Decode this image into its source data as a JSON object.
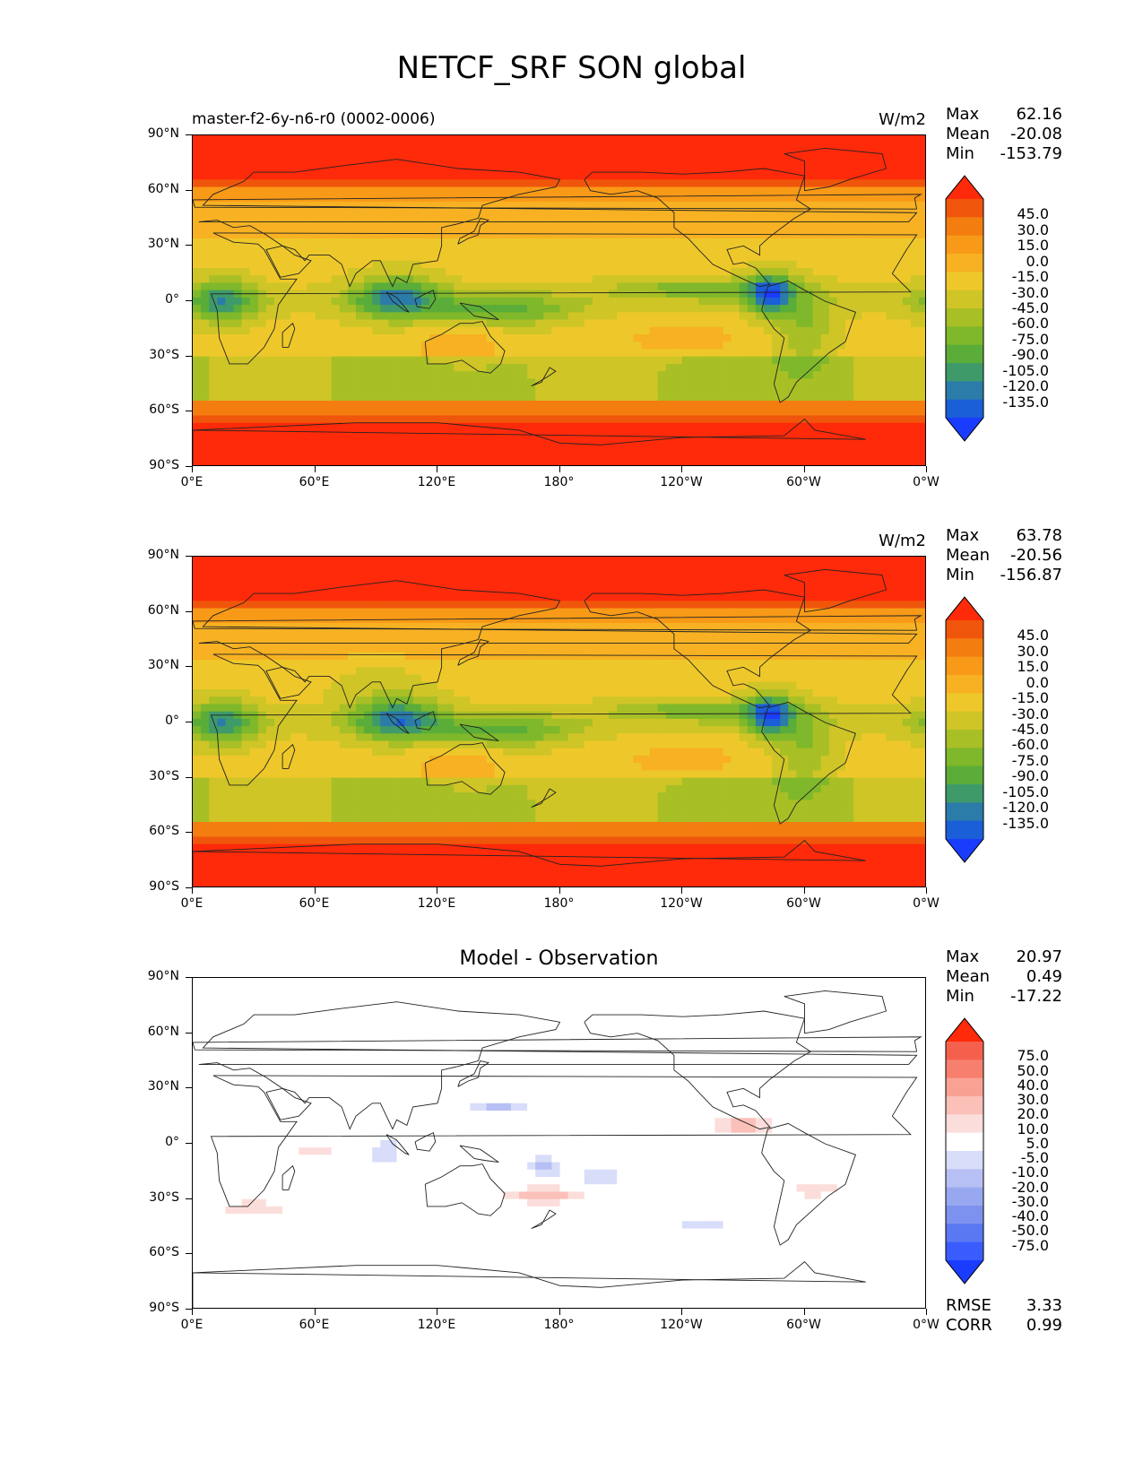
{
  "figure_title": "NETCF_SRF SON global",
  "colors": {
    "mean_scale": [
      "#1a3cff",
      "#1a5ed8",
      "#2b7ca8",
      "#3f9a6a",
      "#5aad38",
      "#7fb82a",
      "#a8bf25",
      "#cfc527",
      "#eec82a",
      "#f7b122",
      "#f89a17",
      "#f47d10",
      "#f0560b",
      "#ff2a0a"
    ],
    "diff_scale": [
      "#1a3cff",
      "#3a5cff",
      "#5a78f2",
      "#7d91ee",
      "#98a8f0",
      "#b7c0f4",
      "#d8ddf9",
      "#ffffff",
      "#fbdedb",
      "#fbc0b8",
      "#f9a294",
      "#f77f6e",
      "#f5604d",
      "#ff2a0a"
    ],
    "land_outline": "#222222"
  },
  "axes": {
    "y_ticks": [
      "90°N",
      "60°N",
      "30°N",
      "0°",
      "30°S",
      "60°S",
      "90°S"
    ],
    "x_ticks": [
      "0°E",
      "60°E",
      "120°E",
      "180°",
      "120°W",
      "60°W",
      "0°W"
    ]
  },
  "panels": [
    {
      "id": "model",
      "left_title": "master-f2-6y-n6-r0 (0002-0006)",
      "units": "W/m2",
      "center_title": "",
      "stats": [
        {
          "label": "Max",
          "value": "62.16"
        },
        {
          "label": "Mean",
          "value": "-20.08"
        },
        {
          "label": "Min",
          "value": "-153.79"
        }
      ],
      "cbar_labels": [
        "45.0",
        "30.0",
        "15.0",
        "0.0",
        "-15.0",
        "-30.0",
        "-45.0",
        "-60.0",
        "-75.0",
        "-90.0",
        "-105.0",
        "-120.0",
        "-135.0"
      ],
      "type": "mean"
    },
    {
      "id": "observation",
      "left_title": "",
      "units": "W/m2",
      "center_title": "",
      "stats": [
        {
          "label": "Max",
          "value": "63.78"
        },
        {
          "label": "Mean",
          "value": "-20.56"
        },
        {
          "label": "Min",
          "value": "-156.87"
        }
      ],
      "cbar_labels": [
        "45.0",
        "30.0",
        "15.0",
        "0.0",
        "-15.0",
        "-30.0",
        "-45.0",
        "-60.0",
        "-75.0",
        "-90.0",
        "-105.0",
        "-120.0",
        "-135.0"
      ],
      "type": "mean"
    },
    {
      "id": "difference",
      "left_title": "",
      "units": "",
      "center_title": "Model - Observation",
      "stats": [
        {
          "label": "Max",
          "value": "20.97"
        },
        {
          "label": "Mean",
          "value": "0.49"
        },
        {
          "label": "Min",
          "value": "-17.22"
        }
      ],
      "cbar_labels": [
        "75.0",
        "50.0",
        "40.0",
        "30.0",
        "20.0",
        "10.0",
        "5.0",
        "-5.0",
        "-10.0",
        "-20.0",
        "-30.0",
        "-40.0",
        "-50.0",
        "-75.0"
      ],
      "type": "diff",
      "footer": [
        {
          "label": "RMSE",
          "value": "3.33"
        },
        {
          "label": "CORR",
          "value": "0.99"
        }
      ]
    }
  ],
  "chart_data": {
    "type": "heatmap",
    "title": "NETCF_SRF SON global",
    "variable": "NETCF_SRF",
    "season": "SON",
    "units": "W/m2",
    "xlim": [
      0,
      360
    ],
    "ylim": [
      -90,
      90
    ],
    "maps": [
      {
        "name": "master-f2-6y-n6-r0 (0002-0006)",
        "max": 62.16,
        "mean": -20.08,
        "min": -153.79,
        "contour_levels": [
          -135,
          -120,
          -105,
          -90,
          -75,
          -60,
          -45,
          -30,
          -15,
          0,
          15,
          30,
          45
        ]
      },
      {
        "name": "observation",
        "max": 63.78,
        "mean": -20.56,
        "min": -156.87,
        "contour_levels": [
          -135,
          -120,
          -105,
          -90,
          -75,
          -60,
          -45,
          -30,
          -15,
          0,
          15,
          30,
          45
        ]
      },
      {
        "name": "Model - Observation",
        "max": 20.97,
        "mean": 0.49,
        "min": -17.22,
        "rmse": 3.33,
        "corr": 0.99,
        "contour_levels": [
          -75,
          -50,
          -40,
          -30,
          -20,
          -10,
          -5,
          5,
          10,
          20,
          30,
          40,
          50,
          75
        ]
      }
    ]
  }
}
